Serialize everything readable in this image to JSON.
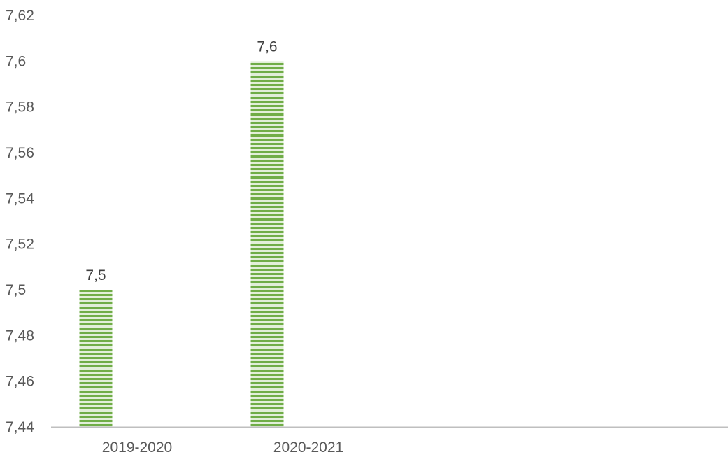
{
  "chart_data": {
    "type": "bar",
    "categories": [
      "2019-2020",
      "2020-2021"
    ],
    "values": [
      7.5,
      7.6
    ],
    "value_labels": [
      "7,5",
      "7,6"
    ],
    "ylim": [
      7.44,
      7.62
    ],
    "yticks": [
      7.44,
      7.46,
      7.48,
      7.5,
      7.52,
      7.54,
      7.56,
      7.58,
      7.6,
      7.62
    ],
    "ytick_labels": [
      "7,44",
      "7,46",
      "7,48",
      "7,5",
      "7,52",
      "7,54",
      "7,56",
      "7,58",
      "7,6",
      "7,62"
    ],
    "grid": false,
    "legend": "none",
    "title": "",
    "xlabel": "",
    "ylabel": "",
    "colors": {
      "bar_stripe": "#70ad47",
      "bar_light": "#e2efd9",
      "axis": "#bfbfbf"
    }
  }
}
